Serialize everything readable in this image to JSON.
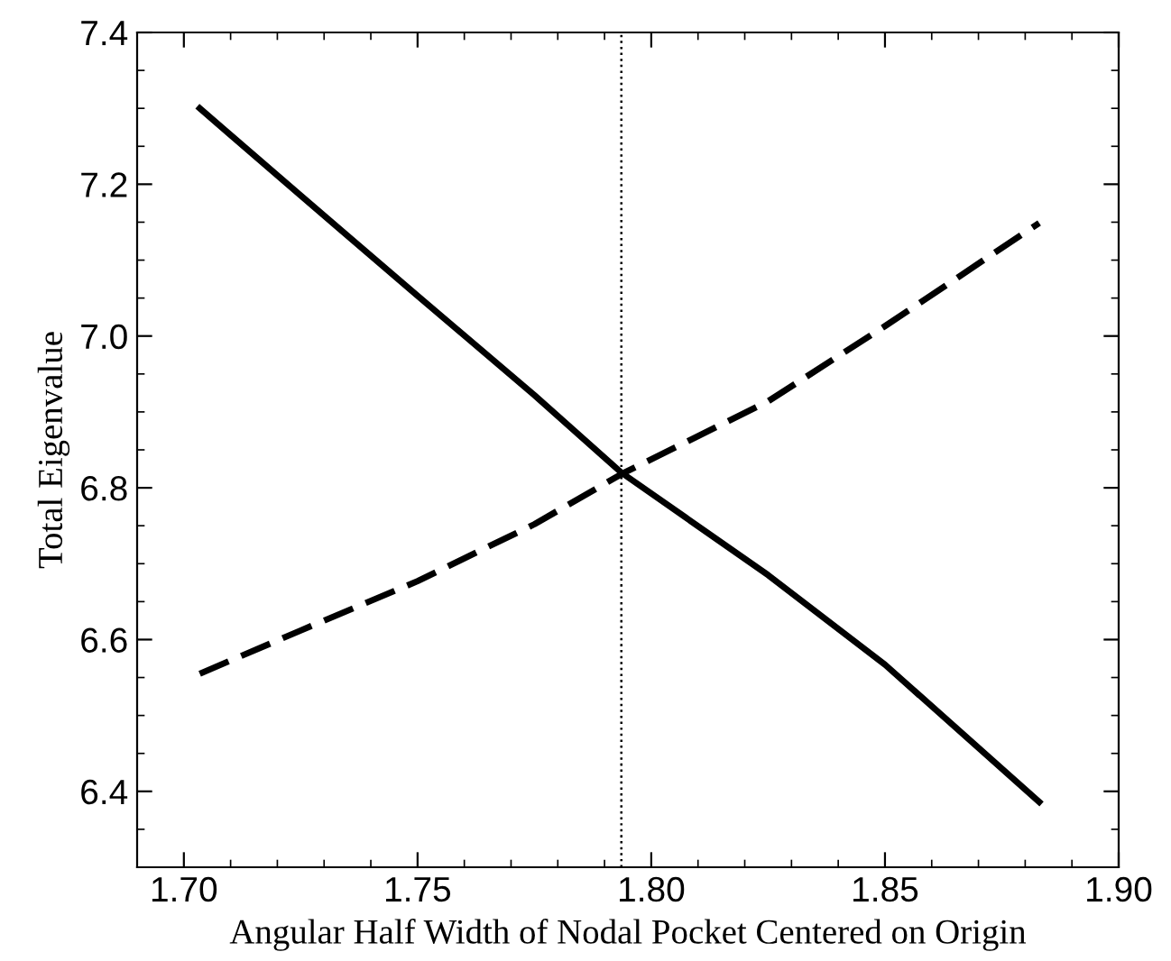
{
  "chart_data": {
    "type": "line",
    "xlabel": "Angular Half Width of Nodal Pocket Centered on Origin",
    "ylabel": "Total Eigenvalue",
    "series": [
      {
        "color": "#000000",
        "line_style": "solid",
        "x": [
          1.7034,
          1.725,
          1.75,
          1.775,
          1.7936,
          1.825,
          1.85,
          1.883
        ],
        "values": [
          7.3,
          7.185,
          7.053,
          6.922,
          6.82,
          6.685,
          6.567,
          6.386
        ]
      },
      {
        "color": "#000000",
        "line_style": "dashed",
        "x": [
          1.7034,
          1.725,
          1.75,
          1.775,
          1.7936,
          1.825,
          1.85,
          1.883
        ],
        "values": [
          6.555,
          6.612,
          6.677,
          6.752,
          6.818,
          6.914,
          7.013,
          7.149
        ]
      }
    ],
    "xlim": [
      1.69,
      1.9
    ],
    "xticks": [
      {
        "value": 1.7,
        "label": "1.70"
      },
      {
        "value": 1.75,
        "label": "1.75"
      },
      {
        "value": 1.8,
        "label": "1.80"
      },
      {
        "value": 1.85,
        "label": "1.85"
      },
      {
        "value": 1.9,
        "label": "1.90"
      }
    ],
    "ylim": [
      6.3,
      7.4
    ],
    "yticks": [
      {
        "value": 6.4,
        "label": "6.4"
      },
      {
        "value": 6.6,
        "label": "6.6"
      },
      {
        "value": 6.8,
        "label": "6.8"
      },
      {
        "value": 7.0,
        "label": "7.0"
      },
      {
        "value": 7.2,
        "label": "7.2"
      },
      {
        "value": 7.4,
        "label": "7.4"
      }
    ],
    "ref_lines": [
      {
        "axis": "x",
        "value": 1.7936,
        "line_style": "dotted",
        "color": "#000000"
      }
    ],
    "grid": false,
    "legend": false,
    "marker": "none"
  }
}
